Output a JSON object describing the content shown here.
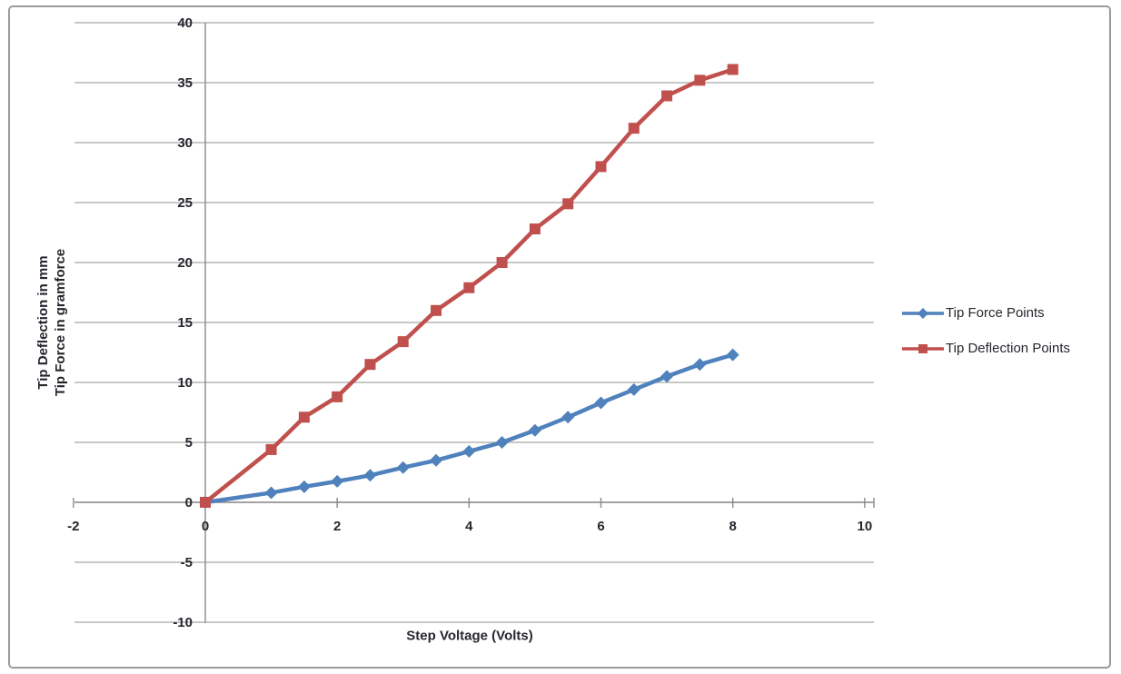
{
  "colors": {
    "series_blue": "#4f81bd",
    "series_red": "#c0504d",
    "gridline": "#a8a8a8",
    "axis_line": "#8a8a8a",
    "text": "#26262e",
    "frame_border": "#9b9b9b",
    "background": "#ffffff"
  },
  "chart_data": {
    "type": "line",
    "title": "",
    "xlabel": "Step Voltage (Volts)",
    "ylabel_lines": [
      "Tip Deflection in mm",
      "Tip Force in gramforce"
    ],
    "x_ticks": [
      -2,
      0,
      2,
      4,
      6,
      8,
      10
    ],
    "y_ticks": [
      40,
      35,
      30,
      25,
      20,
      15,
      10,
      5,
      0,
      -5,
      -10
    ],
    "xlim": [
      -2,
      10
    ],
    "ylim": [
      -10,
      40
    ],
    "grid": "horizontal",
    "legend_position": "right",
    "x": [
      0,
      1,
      1.5,
      2,
      2.5,
      3,
      3.5,
      4,
      4.5,
      5,
      5.5,
      6,
      6.5,
      7,
      7.5,
      8
    ],
    "series": [
      {
        "name": "Tip Force Points",
        "color": "#4f81bd",
        "marker": "diamond",
        "values": [
          0,
          0.8,
          1.3,
          1.75,
          2.25,
          2.9,
          3.5,
          4.25,
          5.0,
          6.0,
          7.1,
          8.3,
          9.4,
          10.5,
          11.5,
          12.3
        ]
      },
      {
        "name": "Tip Deflection Points",
        "color": "#c0504d",
        "marker": "square",
        "values": [
          0,
          4.4,
          7.1,
          8.8,
          11.5,
          13.4,
          16.0,
          17.9,
          20.0,
          22.8,
          24.9,
          28.0,
          31.2,
          33.9,
          35.2,
          36.1
        ]
      }
    ]
  }
}
